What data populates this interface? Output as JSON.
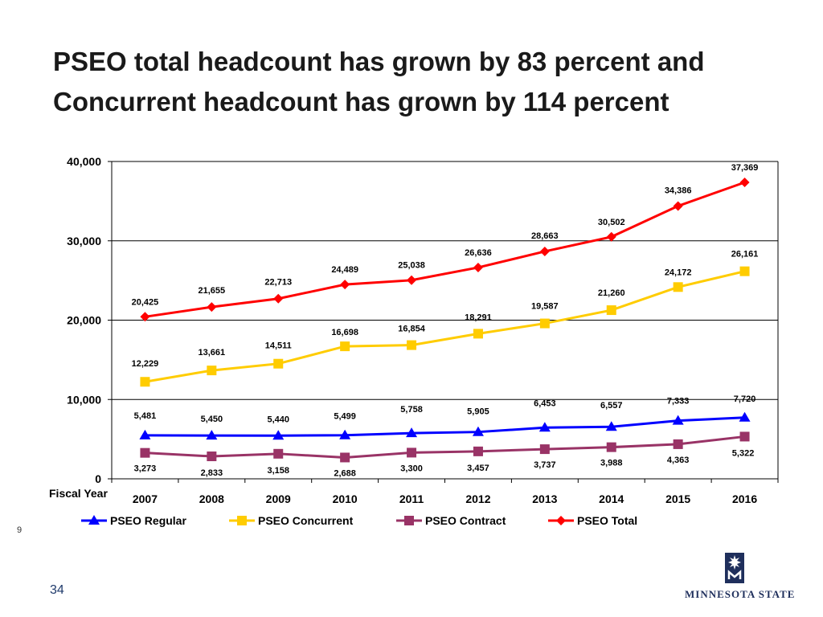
{
  "slide": {
    "title_line1": "PSEO total headcount has grown by 83 percent and",
    "title_line2": "Concurrent headcount has grown by 114 percent",
    "slide_marker": "9",
    "page_number": "34",
    "logo_text": "Minnesota State"
  },
  "chart_data": {
    "type": "line",
    "xlabel": "Fiscal Year",
    "ylabel": "",
    "ylim": [
      0,
      40000
    ],
    "yticks": [
      "0",
      "10,000",
      "20,000",
      "30,000",
      "40,000"
    ],
    "ytick_values": [
      0,
      10000,
      20000,
      30000,
      40000
    ],
    "categories": [
      "2007",
      "2008",
      "2009",
      "2010",
      "2011",
      "2012",
      "2013",
      "2014",
      "2015",
      "2016"
    ],
    "grid": "horizontal",
    "legend_position": "bottom",
    "series": [
      {
        "name": "PSEO Regular",
        "color": "#0000ff",
        "marker": "triangle",
        "values": [
          5481,
          5450,
          5440,
          5499,
          5758,
          5905,
          6453,
          6557,
          7333,
          7720
        ],
        "labels": [
          "5,481",
          "5,450",
          "5,440",
          "5,499",
          "5,758",
          "5,905",
          "6,453",
          "6,557",
          "7,333",
          "7,720"
        ]
      },
      {
        "name": "PSEO Concurrent",
        "color": "#ffcc00",
        "marker": "square",
        "values": [
          12229,
          13661,
          14511,
          16698,
          16854,
          18291,
          19587,
          21260,
          24172,
          26161
        ],
        "labels": [
          "12,229",
          "13,661",
          "14,511",
          "16,698",
          "16,854",
          "18,291",
          "19,587",
          "21,260",
          "24,172",
          "26,161"
        ]
      },
      {
        "name": "PSEO Contract",
        "color": "#993366",
        "marker": "square",
        "values": [
          3273,
          2833,
          3158,
          2688,
          3300,
          3457,
          3737,
          3988,
          4363,
          5322
        ],
        "labels": [
          "3,273",
          "2,833",
          "3,158",
          "2,688",
          "3,300",
          "3,457",
          "3,737",
          "3,988",
          "4,363",
          "5,322"
        ]
      },
      {
        "name": "PSEO Total",
        "color": "#ff0000",
        "marker": "diamond",
        "values": [
          20425,
          21655,
          22713,
          24489,
          25038,
          26636,
          28663,
          30502,
          34386,
          37369
        ],
        "labels": [
          "20,425",
          "21,655",
          "22,713",
          "24,489",
          "25,038",
          "26,636",
          "28,663",
          "30,502",
          "34,386",
          "37,369"
        ]
      }
    ]
  }
}
